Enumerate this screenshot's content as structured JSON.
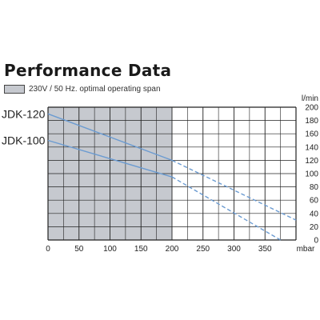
{
  "header": {
    "title": "Performance Data",
    "legend_label": "230V / 50 Hz. optimal operating span",
    "legend_color": "#c6c9cf"
  },
  "chart_data": {
    "type": "line",
    "title": "Performance Data",
    "xlabel": "mbar",
    "ylabel": "l/min",
    "xlim": [
      0,
      400
    ],
    "ylim": [
      0,
      200
    ],
    "x_ticks": [
      0,
      50,
      100,
      150,
      200,
      250,
      300,
      350
    ],
    "x_tick_labels": [
      "0",
      "50",
      "100",
      "150",
      "200",
      "250",
      "300",
      "350"
    ],
    "y_ticks": [
      0,
      20,
      40,
      60,
      80,
      100,
      120,
      140,
      160,
      180,
      200
    ],
    "y_tick_labels": [
      "0",
      "20",
      "40",
      "60",
      "80",
      "100",
      "120",
      "140",
      "160",
      "180",
      "200"
    ],
    "grid": true,
    "shaded_region": {
      "x": [
        0,
        200
      ],
      "label": "230V / 50 Hz. optimal operating span",
      "color": "#c6c9cf"
    },
    "line_color": "#6b9bd1",
    "series": [
      {
        "name": "JDK-120",
        "x": [
          0,
          200,
          400
        ],
        "y": [
          190,
          120,
          30
        ],
        "solid_until": 200
      },
      {
        "name": "JDK-100",
        "x": [
          0,
          200,
          375
        ],
        "y": [
          150,
          95,
          0
        ],
        "solid_until": 200
      }
    ]
  }
}
